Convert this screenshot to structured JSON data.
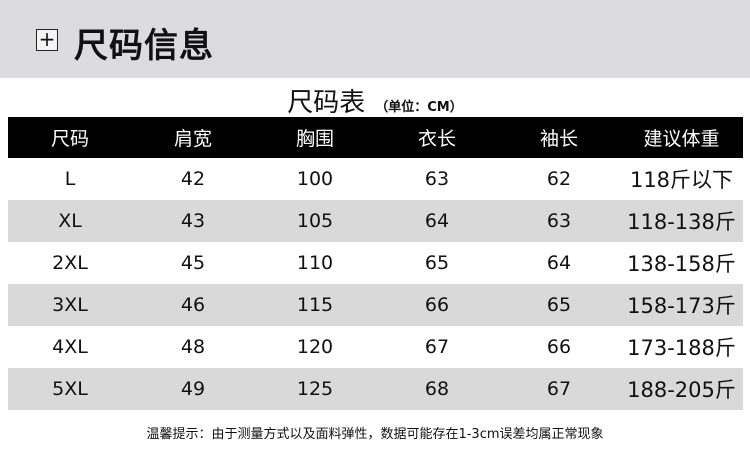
{
  "header": {
    "icon": "plus-box-icon",
    "title": "尺码信息"
  },
  "chart_title": "尺码表",
  "unit": "（单位：CM）",
  "columns": [
    "尺码",
    "肩宽",
    "胸围",
    "衣长",
    "袖长",
    "建议体重"
  ],
  "rows": [
    [
      "L",
      "42",
      "100",
      "63",
      "62",
      "118斤以下"
    ],
    [
      "XL",
      "43",
      "105",
      "64",
      "63",
      "118-138斤"
    ],
    [
      "2XL",
      "45",
      "110",
      "65",
      "64",
      "138-158斤"
    ],
    [
      "3XL",
      "46",
      "115",
      "66",
      "65",
      "158-173斤"
    ],
    [
      "4XL",
      "48",
      "120",
      "67",
      "66",
      "173-188斤"
    ],
    [
      "5XL",
      "49",
      "125",
      "68",
      "67",
      "188-205斤"
    ]
  ],
  "note": "温馨提示：由于测量方式以及面料弹性，数据可能存在1-3cm误差均属正常现象"
}
